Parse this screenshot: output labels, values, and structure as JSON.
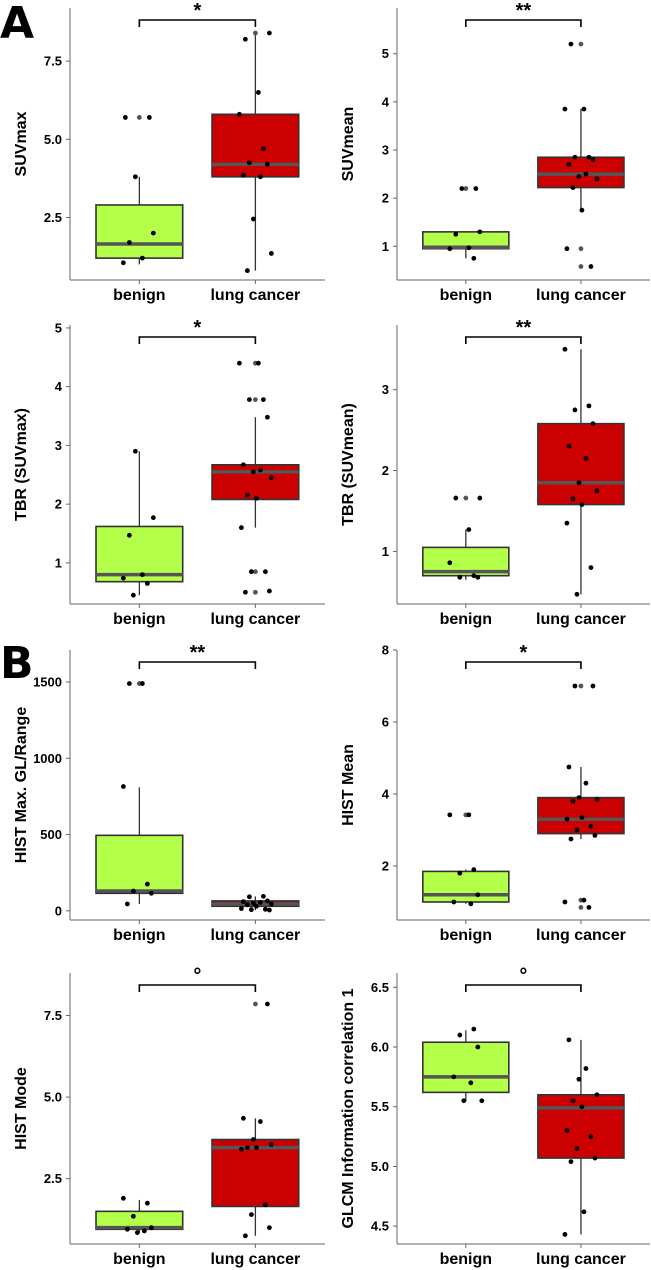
{
  "panel_labels": [
    "A",
    "B"
  ],
  "colors": {
    "benign": "#b4ff4a",
    "lung_cancer": "#cc0000",
    "median": "#555555"
  },
  "chart_data": [
    {
      "type": "box",
      "panel": "A",
      "ylabel": "SUVmax",
      "categories": [
        "benign",
        "lung cancer"
      ],
      "yticks": [
        2.5,
        5.0,
        7.5
      ],
      "ytick_labels": [
        "2.5",
        "5.0",
        "7.5"
      ],
      "ylim": [
        0.5,
        9.2
      ],
      "significance": "*",
      "boxes": [
        {
          "q1": 1.2,
          "median": 1.65,
          "q3": 2.9,
          "whisker_low": 1.0,
          "whisker_high": 3.8
        },
        {
          "q1": 3.8,
          "median": 4.2,
          "q3": 5.8,
          "whisker_low": 0.8,
          "whisker_high": 8.4
        }
      ],
      "outliers": [
        [
          5.7
        ],
        [
          8.4
        ]
      ],
      "points": [
        [
          5.7,
          5.7,
          3.8,
          2.0,
          1.7,
          1.2,
          1.05
        ],
        [
          8.4,
          8.2,
          6.5,
          5.8,
          4.7,
          4.25,
          4.2,
          3.85,
          3.8,
          2.45,
          1.35,
          0.8
        ]
      ]
    },
    {
      "type": "box",
      "panel": "A",
      "ylabel": "SUVmean",
      "categories": [
        "benign",
        "lung cancer"
      ],
      "yticks": [
        1,
        2,
        3,
        4,
        5
      ],
      "ytick_labels": [
        "1",
        "2",
        "3",
        "4",
        "5"
      ],
      "ylim": [
        0.3,
        5.95
      ],
      "significance": "**",
      "boxes": [
        {
          "q1": 0.95,
          "median": 0.98,
          "q3": 1.3,
          "whisker_low": 0.75,
          "whisker_high": 1.3
        },
        {
          "q1": 2.22,
          "median": 2.5,
          "q3": 2.85,
          "whisker_low": 1.75,
          "whisker_high": 3.85
        }
      ],
      "outliers": [
        [
          2.2
        ],
        [
          5.2,
          0.95,
          0.58
        ]
      ],
      "points": [
        [
          2.2,
          2.2,
          1.3,
          1.25,
          0.97,
          0.95,
          0.75
        ],
        [
          5.2,
          3.85,
          3.85,
          2.85,
          2.85,
          2.8,
          2.7,
          2.5,
          2.45,
          2.4,
          2.22,
          1.75,
          0.95,
          0.58
        ]
      ]
    },
    {
      "type": "box",
      "panel": "A",
      "ylabel": "TBR (SUVmax)",
      "categories": [
        "benign",
        "lung cancer"
      ],
      "yticks": [
        1,
        2,
        3,
        4,
        5
      ],
      "ytick_labels": [
        "1",
        "2",
        "3",
        "4",
        "5"
      ],
      "ylim": [
        0.3,
        5.05
      ],
      "significance": "*",
      "boxes": [
        {
          "q1": 0.68,
          "median": 0.8,
          "q3": 1.62,
          "whisker_low": 0.45,
          "whisker_high": 2.9
        },
        {
          "q1": 2.08,
          "median": 2.55,
          "q3": 2.67,
          "whisker_low": 1.6,
          "whisker_high": 3.48
        }
      ],
      "outliers": [
        [],
        [
          4.4,
          3.78,
          0.85,
          0.5
        ]
      ],
      "points": [
        [
          2.9,
          1.77,
          1.47,
          0.8,
          0.74,
          0.65,
          0.45
        ],
        [
          4.4,
          4.4,
          3.78,
          3.78,
          3.48,
          2.67,
          2.58,
          2.55,
          2.45,
          2.15,
          2.1,
          1.6,
          0.85,
          0.85,
          0.52,
          0.5
        ]
      ]
    },
    {
      "type": "box",
      "panel": "A",
      "ylabel": "TBR (SUVmean)",
      "categories": [
        "benign",
        "lung cancer"
      ],
      "yticks": [
        1,
        2,
        3
      ],
      "ytick_labels": [
        "1",
        "2",
        "3"
      ],
      "ylim": [
        0.35,
        3.8
      ],
      "significance": "**",
      "boxes": [
        {
          "q1": 0.7,
          "median": 0.75,
          "q3": 1.05,
          "whisker_low": 0.65,
          "whisker_high": 1.27
        },
        {
          "q1": 1.58,
          "median": 1.85,
          "q3": 2.58,
          "whisker_low": 0.47,
          "whisker_high": 3.5
        }
      ],
      "outliers": [
        [
          1.66
        ],
        []
      ],
      "points": [
        [
          1.66,
          1.66,
          1.27,
          0.86,
          0.7,
          0.68,
          0.68
        ],
        [
          3.5,
          2.8,
          2.75,
          2.58,
          2.3,
          2.15,
          1.85,
          1.75,
          1.65,
          1.58,
          1.35,
          0.8,
          0.47
        ]
      ]
    },
    {
      "type": "box",
      "panel": "B",
      "ylabel": "HIST Max. GL/Range",
      "categories": [
        "benign",
        "lung cancer"
      ],
      "yticks": [
        0,
        500,
        1000,
        1500
      ],
      "ytick_labels": [
        "0",
        "500",
        "1000",
        "1500"
      ],
      "ylim": [
        -60,
        1710
      ],
      "significance": "**",
      "boxes": [
        {
          "q1": 115,
          "median": 130,
          "q3": 495,
          "whisker_low": 45,
          "whisker_high": 810
        },
        {
          "q1": 30,
          "median": 45,
          "q3": 65,
          "whisker_low": 5,
          "whisker_high": 95
        }
      ],
      "outliers": [
        [
          1490
        ],
        []
      ],
      "points": [
        [
          1490,
          1490,
          815,
          175,
          130,
          115,
          45
        ],
        [
          95,
          92,
          65,
          60,
          55,
          50,
          45,
          40,
          30,
          15,
          10,
          8,
          5
        ]
      ]
    },
    {
      "type": "box",
      "panel": "B",
      "ylabel": "HIST Mean",
      "categories": [
        "benign",
        "lung cancer"
      ],
      "yticks": [
        2,
        4,
        6,
        8
      ],
      "ytick_labels": [
        "2",
        "4",
        "6",
        "8"
      ],
      "ylim": [
        0.5,
        8.0
      ],
      "significance": "*",
      "boxes": [
        {
          "q1": 1.0,
          "median": 1.2,
          "q3": 1.85,
          "whisker_low": 0.95,
          "whisker_high": 1.9
        },
        {
          "q1": 2.9,
          "median": 3.3,
          "q3": 3.9,
          "whisker_low": 2.75,
          "whisker_high": 4.75
        }
      ],
      "outliers": [
        [
          3.42
        ],
        [
          7.0,
          1.05,
          0.85
        ]
      ],
      "points": [
        [
          3.42,
          3.42,
          1.9,
          1.8,
          1.2,
          1.0,
          0.95
        ],
        [
          7.0,
          7.0,
          4.75,
          4.3,
          3.9,
          3.85,
          3.8,
          3.35,
          3.3,
          3.1,
          3.0,
          2.85,
          2.75,
          1.05,
          1.0,
          0.85
        ]
      ]
    },
    {
      "type": "box",
      "panel": "B",
      "ylabel": "HIST Mode",
      "categories": [
        "benign",
        "lung cancer"
      ],
      "yticks": [
        2.5,
        5.0,
        7.5
      ],
      "ytick_labels": [
        "2.5",
        "5.0",
        "7.5"
      ],
      "ylim": [
        0.5,
        8.8
      ],
      "significance": "°",
      "boxes": [
        {
          "q1": 0.95,
          "median": 1.0,
          "q3": 1.5,
          "whisker_low": 0.85,
          "whisker_high": 1.85
        },
        {
          "q1": 1.65,
          "median": 3.45,
          "q3": 3.7,
          "whisker_low": 0.75,
          "whisker_high": 4.35
        }
      ],
      "outliers": [
        [],
        [
          7.85
        ]
      ],
      "points": [
        [
          1.9,
          1.75,
          1.35,
          1.0,
          0.95,
          0.9,
          0.85
        ],
        [
          7.85,
          4.35,
          4.25,
          3.7,
          3.55,
          3.45,
          3.45,
          3.4,
          1.7,
          1.4,
          1.0,
          0.75
        ]
      ]
    },
    {
      "type": "box",
      "panel": "B",
      "ylabel": "GLCM Information correlation 1",
      "categories": [
        "benign",
        "lung cancer"
      ],
      "yticks": [
        4.5,
        5.0,
        5.5,
        6.0,
        6.5
      ],
      "ytick_labels": [
        "4.5",
        "5.0",
        "5.5",
        "6.0",
        "6.5"
      ],
      "ylim": [
        4.35,
        6.62
      ],
      "significance": "°",
      "boxes": [
        {
          "q1": 5.62,
          "median": 5.75,
          "q3": 6.04,
          "whisker_low": 5.55,
          "whisker_high": 6.14
        },
        {
          "q1": 5.07,
          "median": 5.49,
          "q3": 5.6,
          "whisker_low": 4.43,
          "whisker_high": 6.06
        }
      ],
      "outliers": [
        [],
        []
      ],
      "points": [
        [
          6.15,
          6.1,
          6.0,
          5.75,
          5.7,
          5.55,
          5.55
        ],
        [
          6.06,
          5.82,
          5.73,
          5.6,
          5.55,
          5.5,
          5.3,
          5.25,
          5.15,
          5.07,
          5.04,
          4.62,
          4.43
        ]
      ]
    }
  ]
}
